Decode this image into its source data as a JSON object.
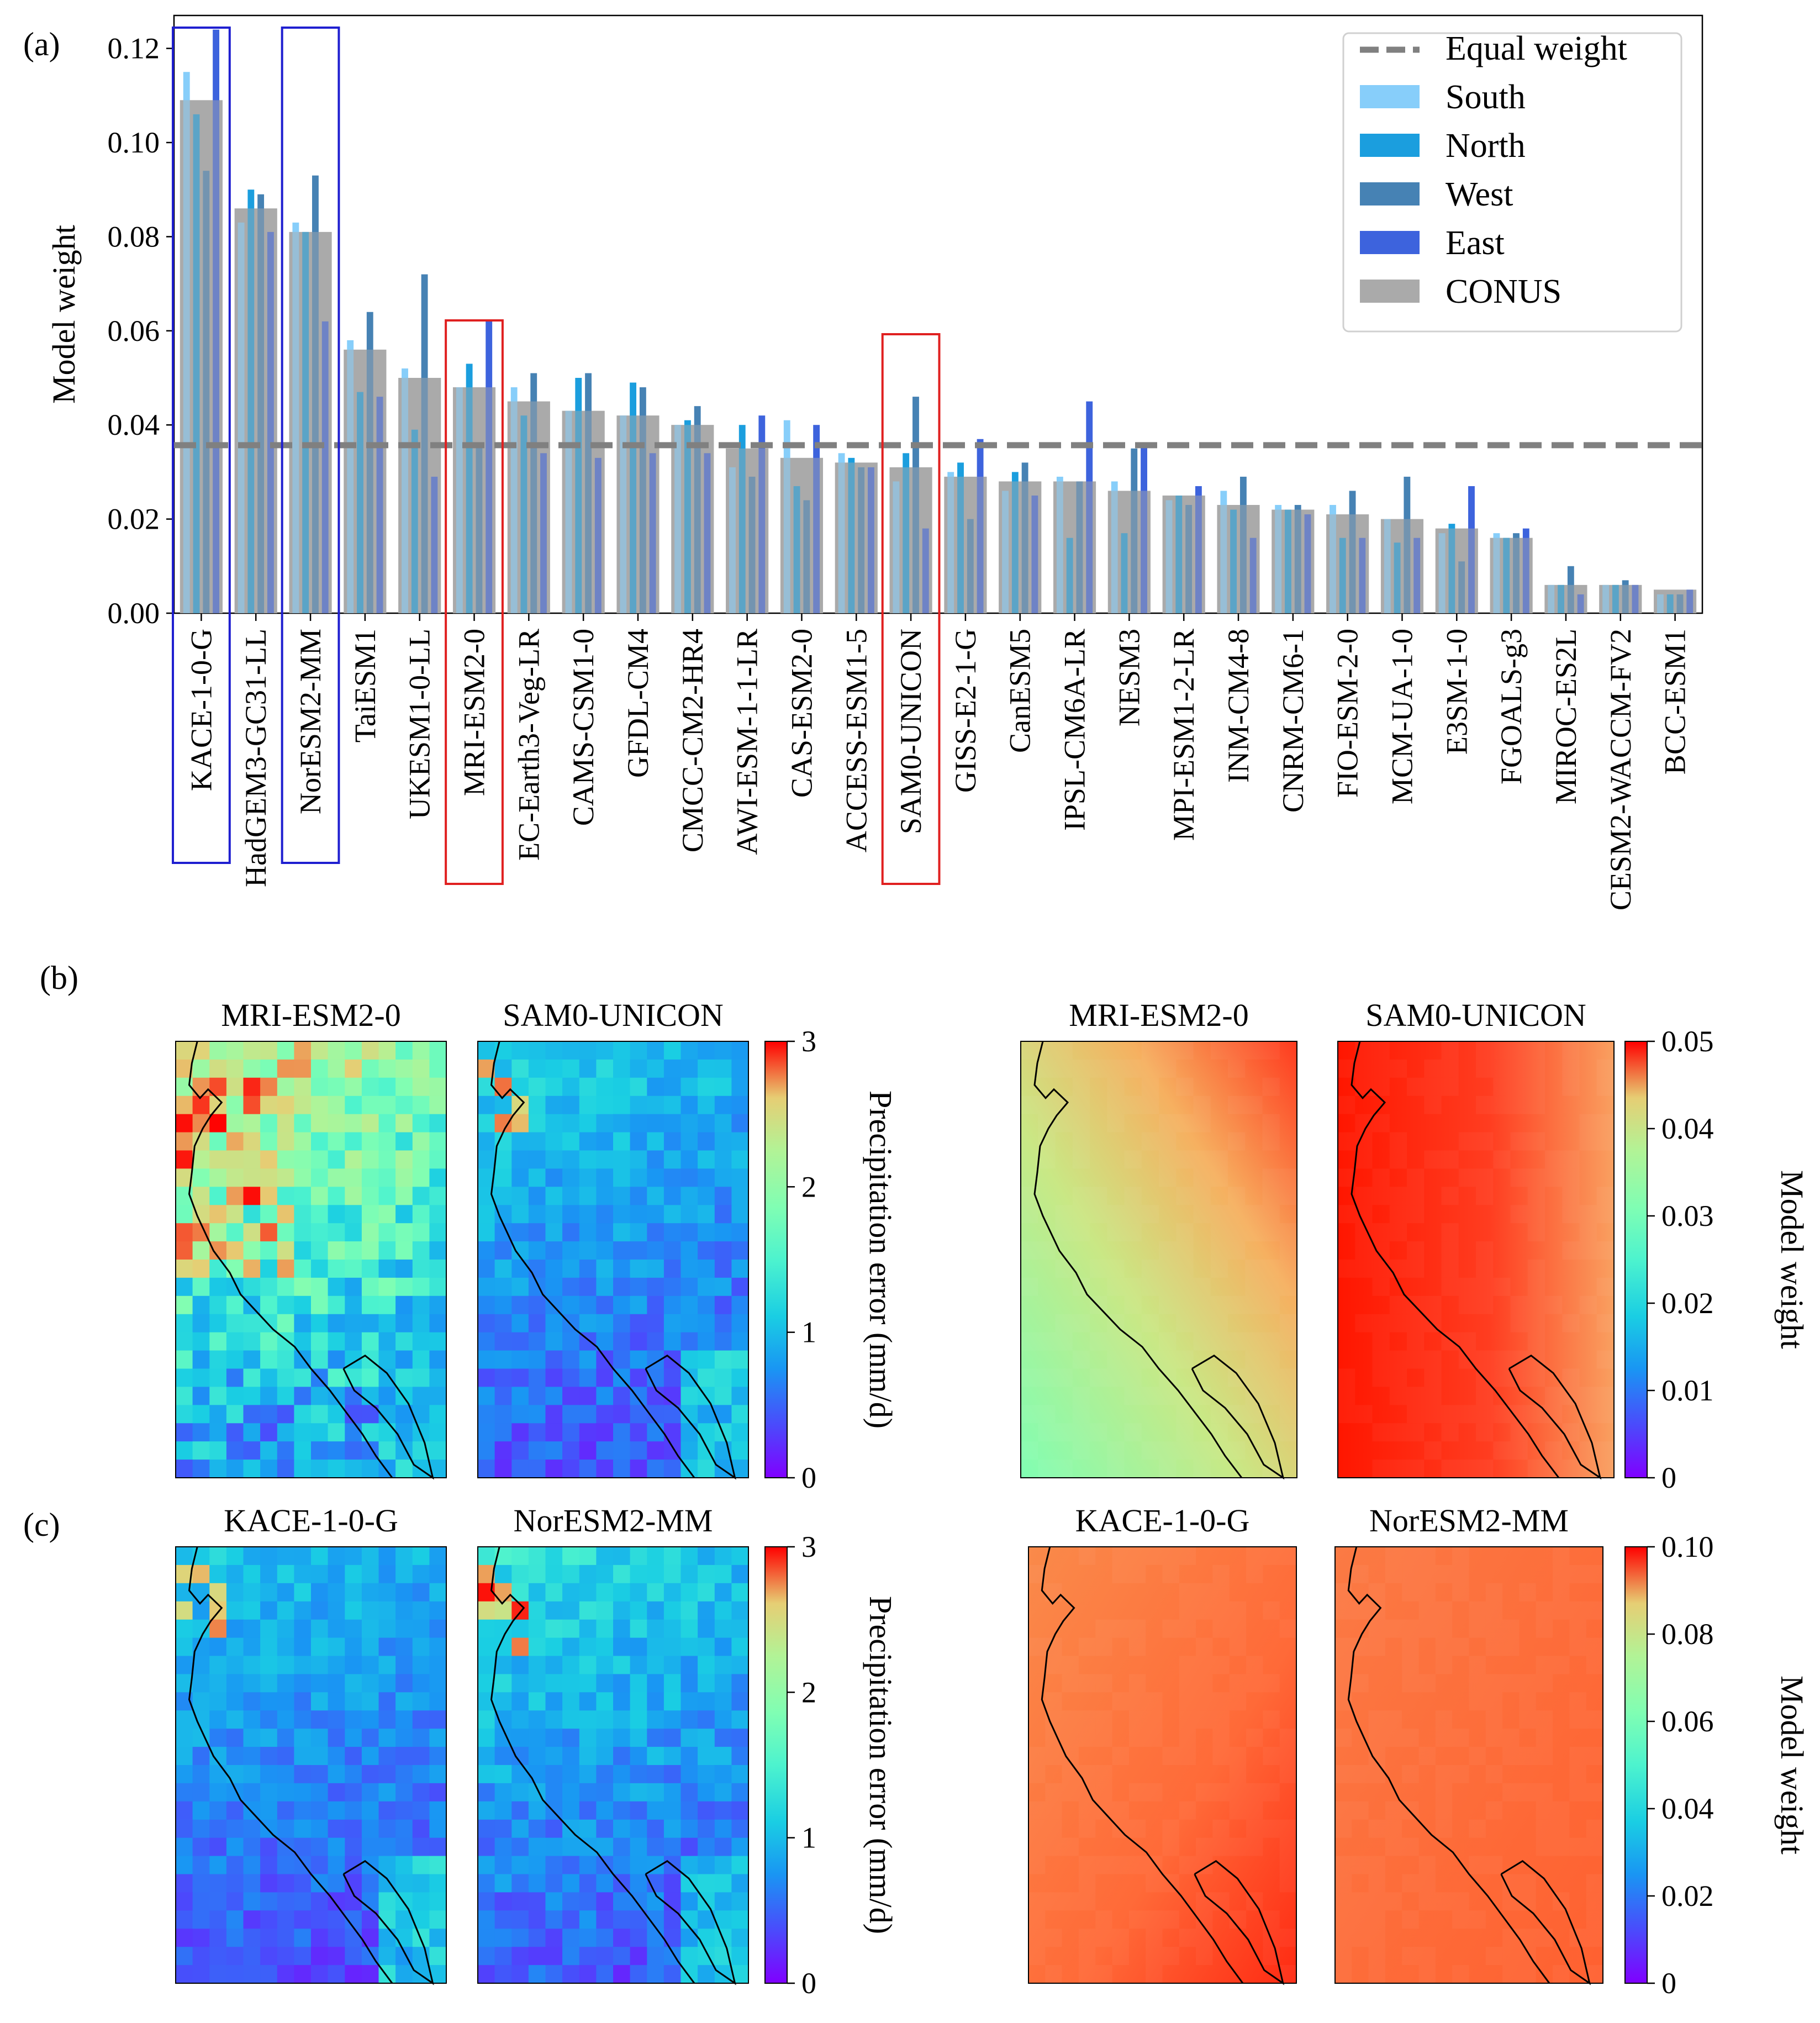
{
  "panel_labels": {
    "a": "(a)",
    "b": "(b)",
    "c": "(c)"
  },
  "colors": {
    "south": "#87cefa",
    "north": "#1b9ede",
    "west": "#4682b4",
    "east": "#3d63dd",
    "conus": "#aaaaaa",
    "equal": "#808080",
    "box_blue": "#1f1fd0",
    "box_red": "#e02020"
  },
  "chart_data": [
    {
      "type": "bar",
      "ylabel": "Model weight",
      "ylim": [
        0,
        0.127
      ],
      "yticks": [
        "0.00",
        "0.02",
        "0.04",
        "0.06",
        "0.08",
        "0.10",
        "0.12"
      ],
      "ytick_values": [
        0,
        0.02,
        0.04,
        0.06,
        0.08,
        0.1,
        0.12
      ],
      "equal_weight": 0.0357,
      "legend": {
        "position": "top-right",
        "labels": [
          "Equal weight",
          "South",
          "North",
          "West",
          "East",
          "CONUS"
        ]
      },
      "categories": [
        "KACE-1-0-G",
        "HadGEM3-GC31-LL",
        "NorESM2-MM",
        "TaiESM1",
        "UKESM1-0-LL",
        "MRI-ESM2-0",
        "EC-Earth3-Veg-LR",
        "CAMS-CSM1-0",
        "GFDL-CM4",
        "CMCC-CM2-HR4",
        "AWI-ESM-1-1-LR",
        "CAS-ESM2-0",
        "ACCESS-ESM1-5",
        "SAM0-UNICON",
        "GISS-E2-1-G",
        "CanESM5",
        "IPSL-CM6A-LR",
        "NESM3",
        "MPI-ESM1-2-LR",
        "INM-CM4-8",
        "CNRM-CM6-1",
        "FIO-ESM-2-0",
        "MCM-UA-1-0",
        "E3SM-1-0",
        "FGOALS-g3",
        "MIROC-ES2L",
        "CESM2-WACCM-FV2",
        "BCC-ESM1"
      ],
      "series": [
        {
          "name": "South",
          "values": [
            0.115,
            0.083,
            0.083,
            0.058,
            0.052,
            0.048,
            0.048,
            0.043,
            0.042,
            0.04,
            0.031,
            0.041,
            0.034,
            0.028,
            0.03,
            0.026,
            0.029,
            0.028,
            0.024,
            0.026,
            0.023,
            0.023,
            0.02,
            0.017,
            0.017,
            0.006,
            0.006,
            0.004
          ]
        },
        {
          "name": "North",
          "values": [
            0.106,
            0.09,
            0.081,
            0.047,
            0.039,
            0.053,
            0.042,
            0.05,
            0.049,
            0.041,
            0.04,
            0.027,
            0.033,
            0.034,
            0.032,
            0.03,
            0.016,
            0.017,
            0.025,
            0.022,
            0.022,
            0.016,
            0.015,
            0.019,
            0.016,
            0.006,
            0.006,
            0.004
          ]
        },
        {
          "name": "West",
          "values": [
            0.094,
            0.089,
            0.093,
            0.064,
            0.072,
            0.036,
            0.051,
            0.051,
            0.048,
            0.044,
            0.029,
            0.024,
            0.031,
            0.046,
            0.02,
            0.032,
            0.028,
            0.035,
            0.023,
            0.029,
            0.023,
            0.026,
            0.029,
            0.011,
            0.017,
            0.01,
            0.007,
            0.004
          ]
        },
        {
          "name": "East",
          "values": [
            0.124,
            0.081,
            0.062,
            0.046,
            0.029,
            0.062,
            0.034,
            0.033,
            0.034,
            0.034,
            0.042,
            0.04,
            0.031,
            0.018,
            0.037,
            0.025,
            0.045,
            0.036,
            0.027,
            0.016,
            0.021,
            0.016,
            0.016,
            0.027,
            0.018,
            0.004,
            0.006,
            0.005
          ]
        },
        {
          "name": "CONUS",
          "values": [
            0.109,
            0.086,
            0.081,
            0.056,
            0.05,
            0.048,
            0.045,
            0.043,
            0.042,
            0.04,
            0.035,
            0.033,
            0.032,
            0.031,
            0.029,
            0.028,
            0.028,
            0.026,
            0.025,
            0.023,
            0.022,
            0.021,
            0.02,
            0.018,
            0.016,
            0.006,
            0.006,
            0.005
          ]
        }
      ],
      "highlight_boxes": [
        {
          "category": "KACE-1-0-G",
          "color": "blue"
        },
        {
          "category": "NorESM2-MM",
          "color": "blue"
        },
        {
          "category": "MRI-ESM2-0",
          "color": "red"
        },
        {
          "category": "SAM0-UNICON",
          "color": "red"
        }
      ]
    },
    {
      "type": "heatmap",
      "title": "MRI-ESM2-0",
      "colorbar_label": "Precipitation error (mm/d)",
      "colorbar_ticks": [
        "0",
        "1",
        "2",
        "3"
      ],
      "range": [
        0,
        3
      ]
    },
    {
      "type": "heatmap",
      "title": "SAM0-UNICON",
      "colorbar_label": "Precipitation error (mm/d)",
      "colorbar_ticks": [
        "0",
        "1",
        "2",
        "3"
      ],
      "range": [
        0,
        3
      ]
    },
    {
      "type": "heatmap",
      "title": "MRI-ESM2-0",
      "colorbar_label": "Model weight",
      "colorbar_ticks": [
        "0",
        "0.01",
        "0.02",
        "0.03",
        "0.04",
        "0.05"
      ],
      "range": [
        0,
        0.05
      ]
    },
    {
      "type": "heatmap",
      "title": "SAM0-UNICON",
      "colorbar_label": "Model weight",
      "colorbar_ticks": [
        "0",
        "0.01",
        "0.02",
        "0.03",
        "0.04",
        "0.05"
      ],
      "range": [
        0,
        0.05
      ]
    },
    {
      "type": "heatmap",
      "title": "KACE-1-0-G",
      "colorbar_label": "Precipitation error (mm/d)",
      "colorbar_ticks": [
        "0",
        "1",
        "2",
        "3"
      ],
      "range": [
        0,
        3
      ]
    },
    {
      "type": "heatmap",
      "title": "NorESM2-MM",
      "colorbar_label": "Precipitation error (mm/d)",
      "colorbar_ticks": [
        "0",
        "1",
        "2",
        "3"
      ],
      "range": [
        0,
        3
      ]
    },
    {
      "type": "heatmap",
      "title": "KACE-1-0-G",
      "colorbar_label": "Model weight",
      "colorbar_ticks": [
        "0",
        "0.02",
        "0.04",
        "0.06",
        "0.08",
        "0.10"
      ],
      "range": [
        0,
        0.11
      ]
    },
    {
      "type": "heatmap",
      "title": "NorESM2-MM",
      "colorbar_label": "Model weight",
      "colorbar_ticks": [
        "0",
        "0.02",
        "0.04",
        "0.06",
        "0.08",
        "0.10"
      ],
      "range": [
        0,
        0.11
      ]
    }
  ]
}
